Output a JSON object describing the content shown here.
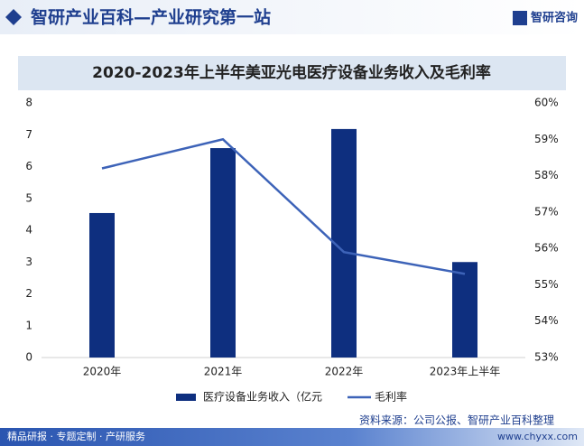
{
  "header": {
    "title": "智研产业百科—产业研究第一站",
    "logo": "智研咨询"
  },
  "chart_data": {
    "type": "bar",
    "title": "2020-2023年上半年美亚光电医疗设备业务收入及毛利率",
    "categories": [
      "2020年",
      "2021年",
      "2022年",
      "2023年上半年"
    ],
    "series": [
      {
        "name": "医疗设备业务收入（亿元",
        "type": "bar",
        "color": "#0e2f7f",
        "values": [
          4.54,
          6.58,
          7.18,
          3.0
        ],
        "axis": "y"
      },
      {
        "name": "毛利率",
        "type": "line",
        "color": "#3d63b8",
        "values": [
          58.2,
          59.0,
          55.9,
          55.3
        ],
        "axis": "y2"
      }
    ],
    "ylim": [
      0,
      8
    ],
    "yticks": [
      0,
      1,
      2,
      3,
      4,
      5,
      6,
      7,
      8
    ],
    "y2lim": [
      53,
      60
    ],
    "y2ticks": [
      {
        "value": 53,
        "label": "53%"
      },
      {
        "value": 54,
        "label": "54%"
      },
      {
        "value": 55,
        "label": "55%"
      },
      {
        "value": 56,
        "label": "56%"
      },
      {
        "value": 57,
        "label": "57%"
      },
      {
        "value": 58,
        "label": "58%"
      },
      {
        "value": 59,
        "label": "59%"
      },
      {
        "value": 60,
        "label": "60%"
      }
    ],
    "grid": false
  },
  "footer": {
    "left": "精品研报 · 专题定制 · 产研服务",
    "source": "资料来源：公司公报、智研产业百科整理",
    "url": "www.chyxx.com"
  }
}
